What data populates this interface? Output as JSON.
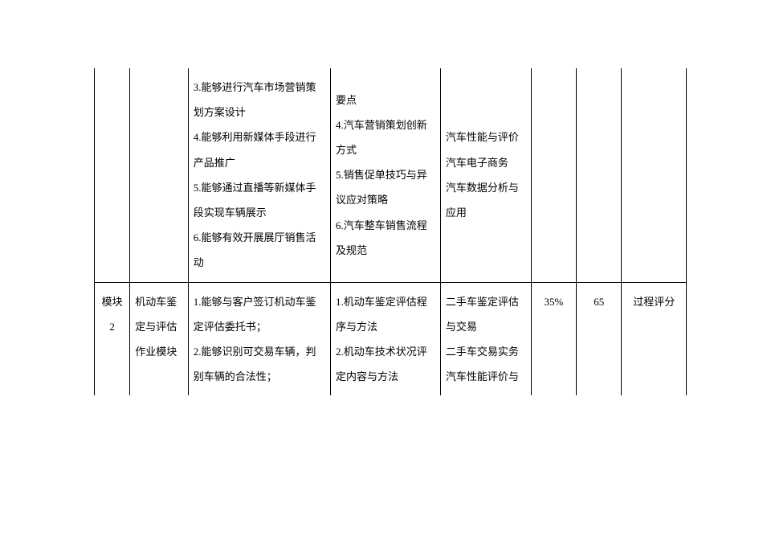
{
  "table": {
    "font_family": "SimSun",
    "font_size": 13,
    "line_height": 2.4,
    "text_color": "#000000",
    "border_color": "#000000",
    "background_color": "#ffffff",
    "columns": [
      {
        "key": "col1",
        "width_pct": 5.5,
        "align": "center"
      },
      {
        "key": "col2",
        "width_pct": 9,
        "align": "left"
      },
      {
        "key": "col3",
        "width_pct": 22,
        "align": "left"
      },
      {
        "key": "col4",
        "width_pct": 17,
        "align": "left"
      },
      {
        "key": "col5",
        "width_pct": 14,
        "align": "left"
      },
      {
        "key": "col6",
        "width_pct": 7,
        "align": "center"
      },
      {
        "key": "col7",
        "width_pct": 7,
        "align": "center"
      },
      {
        "key": "col8",
        "width_pct": 10,
        "align": "center"
      }
    ],
    "rows": [
      {
        "continuation_from_previous_page": true,
        "cells": {
          "col1": "",
          "col2": "",
          "col3": "3.能够进行汽车市场营销策划方案设计\n4.能够利用新媒体手段进行产品推广\n5.能够通过直播等新媒体手段实现车辆展示\n6.能够有效开展展厅销售活动",
          "col4": "要点\n4.汽车营销策划创新方式\n5.销售促单技巧与异议应对策略\n6.汽车整车销售流程及规范",
          "col5": "汽车性能与评价\n汽车电子商务\n汽车数据分析与应用",
          "col6": "",
          "col7": "",
          "col8": ""
        }
      },
      {
        "continuation_to_next_page": true,
        "cells": {
          "col1": "模块2",
          "col2": "机动车鉴定与评估作业模块",
          "col3": "1.能够与客户签订机动车鉴定评估委托书；\n2.能够识别可交易车辆，判别车辆的合法性；",
          "col4": "1.机动车鉴定评估程序与方法\n2.机动车技术状况评定内容与方法",
          "col5": "二手车鉴定评估与交易\n二手车交易实务\n汽车性能评价与",
          "col6": "35%",
          "col7": "65",
          "col8": "过程评分"
        }
      }
    ]
  }
}
